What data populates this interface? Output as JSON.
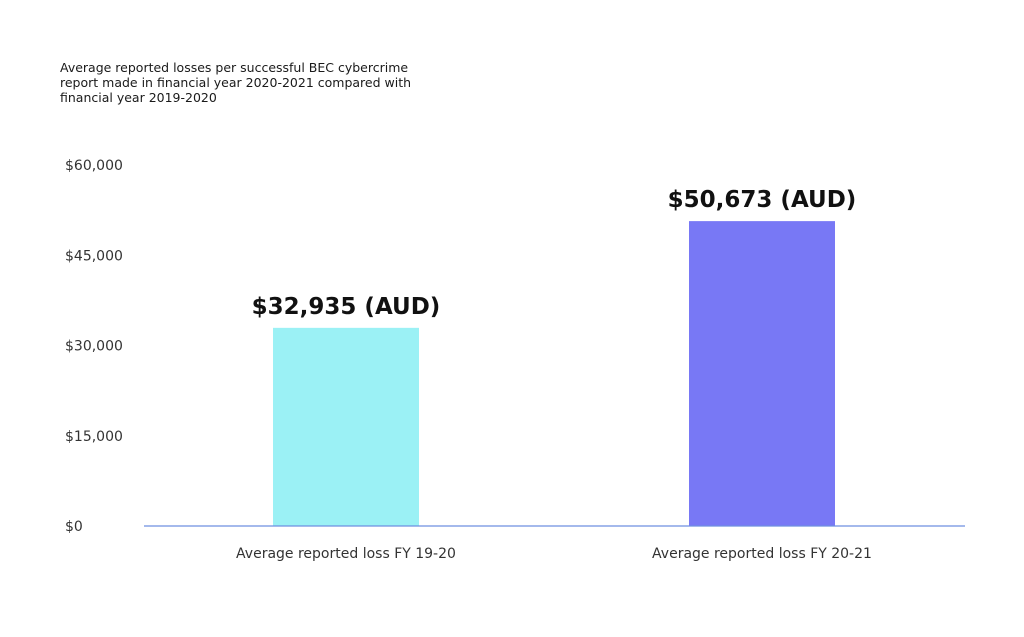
{
  "chart_data": {
    "type": "bar",
    "title": "Average reported losses per successful BEC cybercrime report made  in financial year 2020-2021 compared with financial year 2019-2020",
    "categories": [
      "Average reported loss FY 19-20",
      "Average reported loss FY 20-21"
    ],
    "values": [
      32935,
      50673
    ],
    "data_labels": [
      "$32,935 (AUD)",
      "$50,673 (AUD)"
    ],
    "bar_colors": [
      "#9bf1f5",
      "#7878f5"
    ],
    "axis_color": "#6e8fe0",
    "y_ticks": [
      0,
      15000,
      30000,
      45000,
      60000
    ],
    "y_tick_labels": [
      "$0",
      "$15,000",
      "$30,000",
      "$45,000",
      "$60,000"
    ],
    "ylim": [
      0,
      60000
    ],
    "xlabel": "",
    "ylabel": "",
    "grid": false,
    "legend": "none"
  }
}
